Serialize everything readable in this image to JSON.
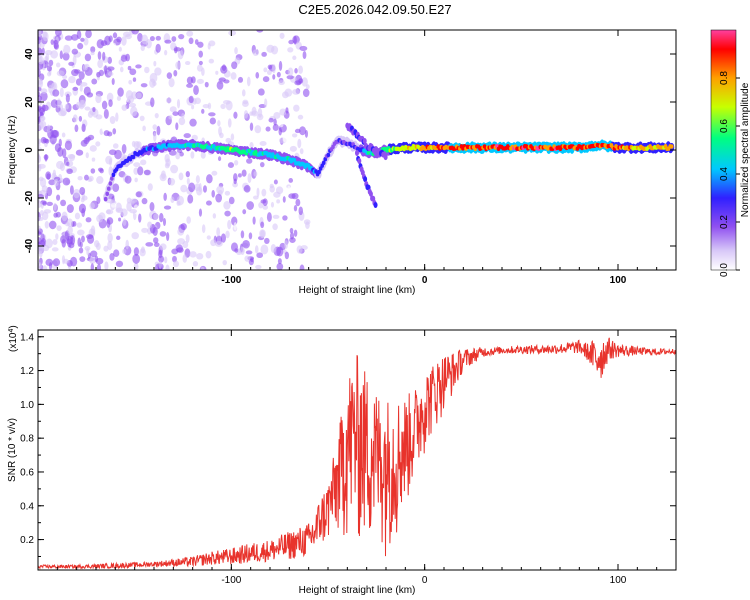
{
  "title": "C2E5.2026.042.09.50.E27",
  "colors": {
    "spectrogram_line": "#e8332c",
    "snr_line": "#e8332c",
    "frame": "#000000"
  },
  "chart_data": [
    {
      "type": "heatmap",
      "name": "spectrogram",
      "xlabel": "Height of straight line (km)",
      "ylabel": "Frequency (Hz)",
      "xlim": [
        -200,
        130
      ],
      "ylim": [
        -50,
        50
      ],
      "x_ticks": [
        -100,
        0,
        100
      ],
      "y_ticks": [
        -40,
        -20,
        0,
        20,
        40
      ],
      "colorbar": {
        "label": "Normalized spectral amplitude",
        "range": [
          0,
          1
        ],
        "ticks": [
          0.0,
          0.2,
          0.4,
          0.6,
          0.8
        ],
        "colormap": [
          "#ffffff",
          "#d8c8f8",
          "#9050f0",
          "#3020ff",
          "#00c8ff",
          "#00ff80",
          "#c8ff00",
          "#ffa000",
          "#ff0000",
          "#ff40a0"
        ]
      },
      "ridge": {
        "x": [
          -165,
          -160,
          -150,
          -140,
          -130,
          -120,
          -110,
          -100,
          -90,
          -80,
          -70,
          -60,
          -55,
          -50,
          -45,
          -40,
          -35,
          -30,
          -25,
          -20,
          -10,
          0,
          20,
          40,
          60,
          80,
          90,
          100,
          110,
          128
        ],
        "y": [
          -20,
          -8,
          -2,
          1,
          2,
          2,
          1,
          0,
          -1,
          -2,
          -4,
          -7,
          -10,
          -2,
          4,
          3,
          1,
          -1,
          -1,
          0,
          1,
          1,
          1,
          1,
          1,
          1,
          2,
          1,
          1,
          1
        ],
        "amplitude": [
          0.25,
          0.3,
          0.35,
          0.4,
          0.45,
          0.5,
          0.55,
          0.6,
          0.55,
          0.5,
          0.5,
          0.45,
          0.35,
          0.3,
          0.3,
          0.3,
          0.3,
          0.5,
          0.55,
          0.6,
          0.7,
          0.8,
          0.9,
          0.95,
          0.95,
          0.9,
          0.9,
          0.85,
          0.8,
          0.8
        ]
      },
      "branches": [
        {
          "x": [
            -40,
            -35,
            -30,
            -25,
            -20
          ],
          "y": [
            10,
            6,
            2,
            -1,
            -2
          ]
        },
        {
          "x": [
            -35,
            -32,
            -28,
            -25
          ],
          "y": [
            -2,
            -10,
            -18,
            -24
          ]
        }
      ]
    },
    {
      "type": "line",
      "name": "snr",
      "xlabel": "Height of straight line (km)",
      "ylabel": "SNR (10 * v/v)",
      "y_scale_label": "(x10",
      "y_scale_exponent": "4",
      "xlim": [
        -200,
        130
      ],
      "ylim": [
        0.02,
        1.44
      ],
      "x_ticks": [
        -100,
        0,
        100
      ],
      "y_ticks": [
        0.2,
        0.4,
        0.6,
        0.8,
        1.0,
        1.2,
        1.4
      ],
      "series": [
        {
          "name": "SNR",
          "x": [
            -200,
            -180,
            -160,
            -140,
            -120,
            -110,
            -100,
            -90,
            -80,
            -70,
            -60,
            -50,
            -45,
            -40,
            -35,
            -30,
            -25,
            -20,
            -15,
            -10,
            -5,
            0,
            10,
            20,
            30,
            40,
            50,
            60,
            70,
            80,
            85,
            90,
            95,
            100,
            110,
            120,
            130
          ],
          "envelope_high": [
            0.05,
            0.05,
            0.06,
            0.07,
            0.1,
            0.13,
            0.15,
            0.18,
            0.2,
            0.25,
            0.3,
            0.55,
            0.8,
            1.2,
            1.3,
            1.2,
            1.1,
            1.05,
            1.05,
            1.05,
            1.1,
            1.2,
            1.3,
            1.33,
            1.34,
            1.34,
            1.35,
            1.35,
            1.36,
            1.38,
            1.36,
            1.42,
            1.4,
            1.36,
            1.34,
            1.33,
            1.33
          ],
          "envelope_low": [
            0.03,
            0.03,
            0.03,
            0.04,
            0.04,
            0.05,
            0.05,
            0.06,
            0.07,
            0.08,
            0.1,
            0.15,
            0.18,
            0.15,
            0.12,
            0.1,
            0.1,
            0.1,
            0.15,
            0.35,
            0.5,
            0.7,
            0.95,
            1.2,
            1.28,
            1.3,
            1.3,
            1.3,
            1.3,
            1.3,
            1.25,
            1.1,
            1.26,
            1.28,
            1.29,
            1.29,
            1.3
          ]
        }
      ]
    }
  ]
}
